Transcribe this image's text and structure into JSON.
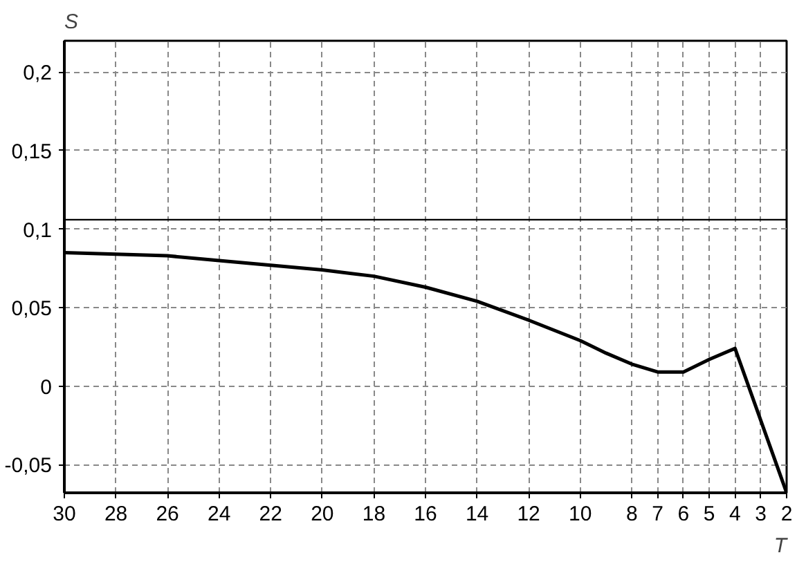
{
  "chart_data": {
    "type": "line",
    "xlabel": "T",
    "ylabel": "S",
    "x": [
      30,
      28,
      26,
      24,
      22,
      20,
      18,
      16,
      14,
      12,
      10,
      9,
      8,
      7,
      6,
      5,
      4,
      2
    ],
    "series": [
      {
        "color": "#000000",
        "values": [
          0.085,
          0.084,
          0.083,
          0.08,
          0.077,
          0.074,
          0.07,
          0.063,
          0.054,
          0.042,
          0.029,
          0.021,
          0.014,
          0.009,
          0.009,
          0.017,
          0.024,
          -0.068
        ]
      }
    ],
    "xlim": [
      30,
      2
    ],
    "ylim": [
      -0.068,
      0.22
    ],
    "xticks": [
      30,
      28,
      26,
      24,
      22,
      20,
      18,
      16,
      14,
      12,
      10,
      8,
      7,
      6,
      5,
      4,
      3,
      2
    ],
    "yticks": [
      {
        "value": -0.05,
        "label": "-0,05"
      },
      0,
      {
        "value": 0.05,
        "label": "0,05"
      },
      {
        "value": 0.1,
        "label": "0,1"
      },
      {
        "value": 0.15,
        "label": "0,15"
      },
      {
        "value": 0.2,
        "label": "0,2"
      }
    ],
    "ref_lines": [
      {
        "axis": "y",
        "value": 0.106,
        "color": "#000000"
      }
    ],
    "grid": true,
    "line_style": "solid",
    "marker": "none"
  }
}
